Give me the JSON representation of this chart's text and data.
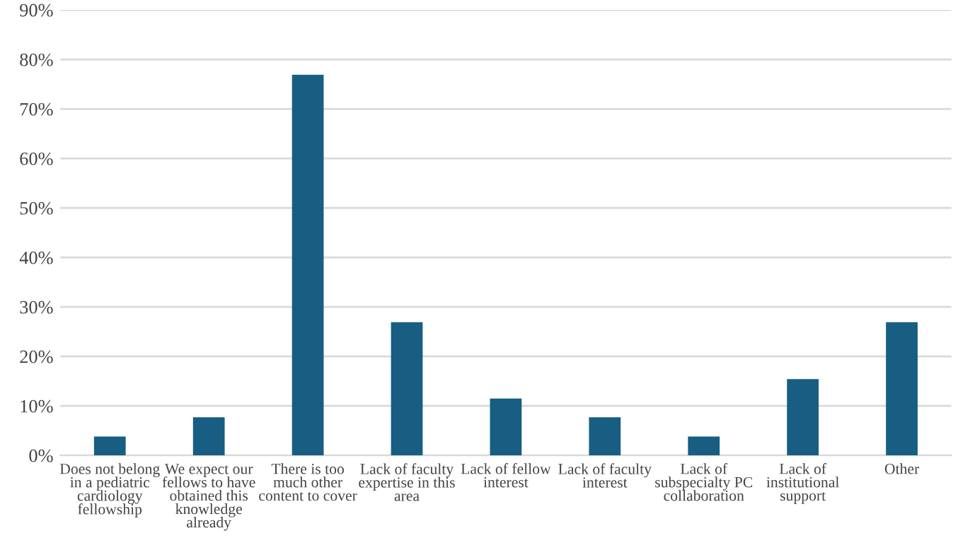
{
  "chart_data": {
    "type": "bar",
    "categories": [
      "Does not belong\nin a pediatric\ncardiology\nfellowship",
      "We expect our\nfellows to have\nobtained this\nknowledge\nalready",
      "There is too\nmuch other\ncontent to cover",
      "Lack of faculty\nexpertise in this\narea",
      "Lack of fellow\ninterest",
      "Lack of faculty\ninterest",
      "Lack of\nsubspecialty PC\ncollaboration",
      "Lack of\ninstitutional\nsupport",
      "Other"
    ],
    "values": [
      3.8,
      7.7,
      76.9,
      26.9,
      11.5,
      7.7,
      3.8,
      15.4,
      26.9
    ],
    "color": "#175e82",
    "ylim": [
      0,
      90
    ],
    "yticks": [
      {
        "value": 0,
        "label": "0%"
      },
      {
        "value": 10,
        "label": "10%"
      },
      {
        "value": 20,
        "label": "20%"
      },
      {
        "value": 30,
        "label": "30%"
      },
      {
        "value": 40,
        "label": "40%"
      },
      {
        "value": 50,
        "label": "50%"
      },
      {
        "value": 60,
        "label": "60%"
      },
      {
        "value": 70,
        "label": "70%"
      },
      {
        "value": 80,
        "label": "80%"
      },
      {
        "value": 90,
        "label": "90%"
      }
    ],
    "grid": "y"
  }
}
